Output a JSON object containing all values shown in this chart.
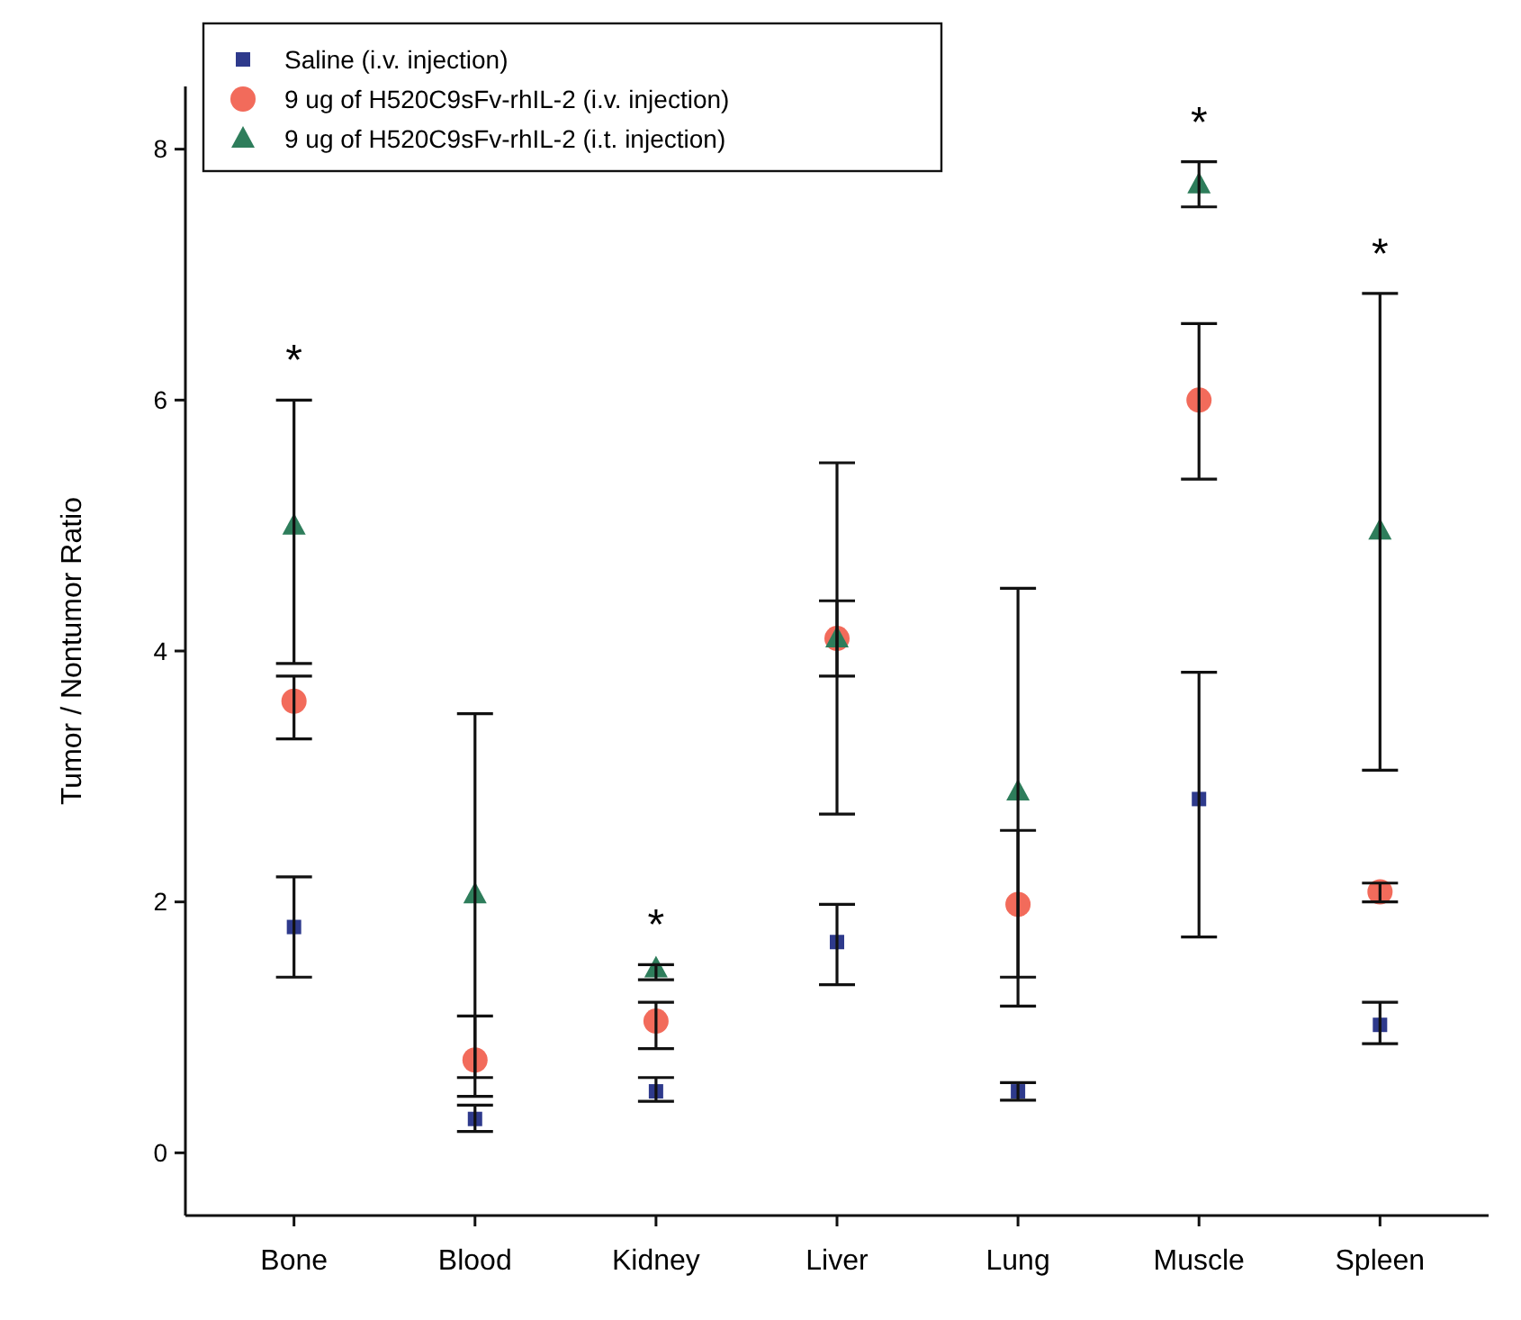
{
  "chart_data": {
    "type": "scatter",
    "ylabel": "Tumor / Nontumor Ratio",
    "categories": [
      "Bone",
      "Blood",
      "Kidney",
      "Liver",
      "Lung",
      "Muscle",
      "Spleen"
    ],
    "ylim": [
      -0.5,
      8.5
    ],
    "yticks": [
      0,
      2,
      4,
      6,
      8
    ],
    "legend": "top left",
    "grid": false,
    "series": [
      {
        "name": "Saline (i.v. injection)",
        "color": "#2e3a8c",
        "marker": "square",
        "values": [
          1.8,
          0.27,
          0.49,
          1.68,
          0.49,
          2.82,
          1.02
        ],
        "errors": [
          [
            1.4,
            2.2
          ],
          [
            0.17,
            0.38
          ],
          [
            0.41,
            0.6
          ],
          [
            1.34,
            1.98
          ],
          [
            0.42,
            0.56
          ],
          [
            1.72,
            3.83
          ],
          [
            0.87,
            1.2
          ]
        ]
      },
      {
        "name": "9 ug of H520C9sFv-rhIL-2 (i.v. injection)",
        "color": "#f26b5b",
        "marker": "circle",
        "values": [
          3.6,
          0.74,
          1.05,
          4.1,
          1.98,
          6.0,
          2.08
        ],
        "errors": [
          [
            3.3,
            3.8
          ],
          [
            0.45,
            1.09
          ],
          [
            0.83,
            1.2
          ],
          [
            3.8,
            4.4
          ],
          [
            1.4,
            2.57
          ],
          [
            5.37,
            6.61
          ],
          [
            2.0,
            2.15
          ]
        ]
      },
      {
        "name": "9 ug of H520C9sFv-rhIL-2 (i.t. injection)",
        "color": "#2e7d5b",
        "marker": "triangle",
        "values": [
          5.0,
          2.06,
          1.47,
          4.1,
          2.88,
          7.72,
          4.96
        ],
        "errors": [
          [
            3.9,
            6.0
          ],
          [
            0.6,
            3.5
          ],
          [
            1.38,
            1.5
          ],
          [
            2.7,
            5.5
          ],
          [
            1.17,
            4.5
          ],
          [
            7.54,
            7.9
          ],
          [
            3.05,
            6.85
          ]
        ]
      }
    ],
    "annotations": [
      {
        "text": "*",
        "x": "Bone",
        "y": 6.0
      },
      {
        "text": "*",
        "x": "Kidney",
        "y": 1.5
      },
      {
        "text": "*",
        "x": "Muscle",
        "y": 7.9
      },
      {
        "text": "*",
        "x": "Spleen",
        "y": 6.85
      }
    ]
  }
}
